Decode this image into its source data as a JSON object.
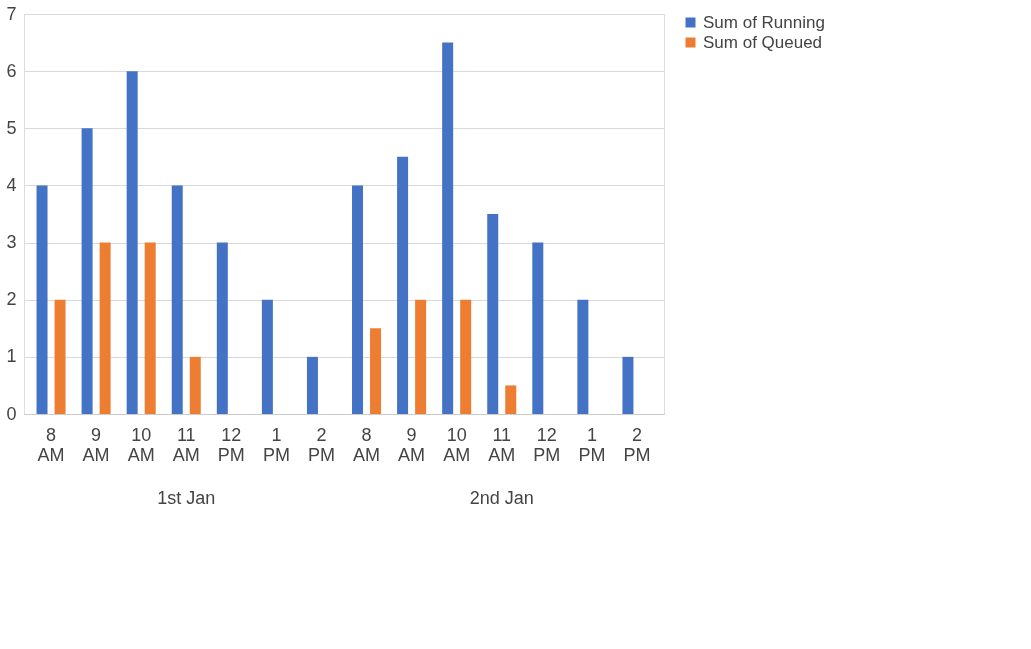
{
  "chart_data": {
    "type": "bar",
    "categories": [
      "8 AM",
      "9 AM",
      "10 AM",
      "11 AM",
      "12 PM",
      "1 PM",
      "2 PM",
      "8 AM",
      "9 AM",
      "10 AM",
      "11 AM",
      "12 PM",
      "1 PM",
      "2 PM"
    ],
    "series": [
      {
        "name": "Sum of Running",
        "color": "#4472c4",
        "values": [
          4,
          5,
          6,
          4,
          3,
          2,
          1,
          4,
          4.5,
          6.5,
          3.5,
          3,
          2,
          1
        ]
      },
      {
        "name": "Sum of Queued",
        "color": "#ed7d31",
        "values": [
          2,
          3,
          3,
          1,
          0,
          0,
          0,
          1.5,
          2,
          2,
          0.5,
          0,
          0,
          0
        ]
      }
    ],
    "annotations": [
      "1st Jan",
      "2nd Jan"
    ],
    "ylim": [
      0,
      7
    ],
    "yticks": [
      0,
      1,
      2,
      3,
      4,
      5,
      6,
      7
    ],
    "grid": "y",
    "legend": "right"
  }
}
